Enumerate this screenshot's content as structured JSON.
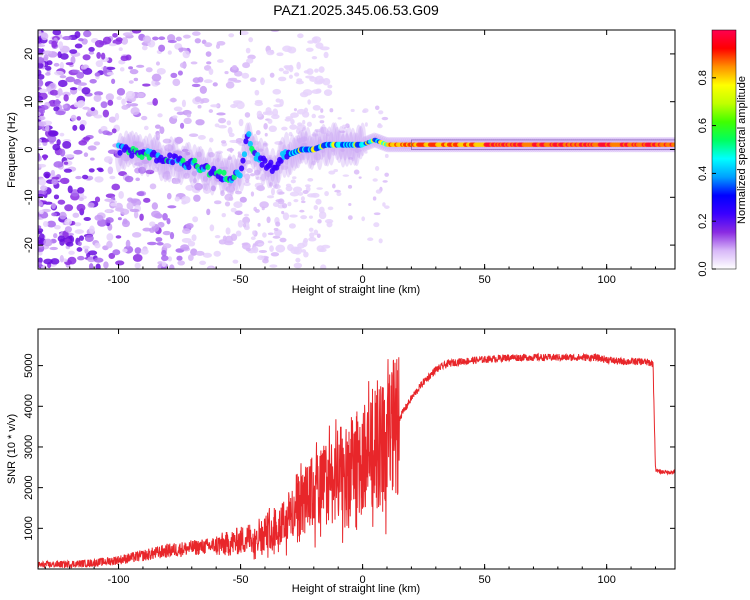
{
  "title": "PAZ1.2025.345.06.53.G09",
  "chart_data": [
    {
      "type": "heatmap",
      "title": "PAZ1.2025.345.06.53.G09",
      "xlabel": "Height of straight line (km)",
      "ylabel": "Frequency (Hz)",
      "xlim": [
        -133,
        128
      ],
      "ylim": [
        -25,
        25
      ],
      "xticks": [
        -100,
        -50,
        0,
        50,
        100
      ],
      "yticks": [
        -20,
        -10,
        0,
        10,
        20
      ],
      "colorbar": {
        "label": "Normalized spectral amplitude",
        "range": [
          0.0,
          1.0
        ],
        "ticks": [
          "0.0",
          "0.2",
          "0.4",
          "0.6",
          "0.8"
        ],
        "colors": [
          "#ffffff",
          "#d8b8f8",
          "#8a2be2",
          "#3a00ff",
          "#0000ff",
          "#00a0ff",
          "#00ffff",
          "#00ff60",
          "#40ff00",
          "#c0ff00",
          "#ffff00",
          "#ff9000",
          "#ff0000",
          "#ff0050"
        ]
      },
      "ridge": {
        "x": [
          -100,
          -90,
          -80,
          -70,
          -60,
          -55,
          -50,
          -47,
          -44,
          -40,
          -35,
          -32,
          -30,
          -25,
          -20,
          -15,
          -10,
          -5,
          0,
          5,
          10,
          20,
          40,
          60,
          80,
          100,
          128
        ],
        "y": [
          0,
          -1,
          -2,
          -3,
          -5,
          -6,
          -5,
          3,
          -1,
          -3,
          -4,
          -1,
          -1,
          0,
          0,
          1,
          1,
          1,
          1,
          2,
          1,
          1,
          1,
          1,
          1,
          1,
          1
        ]
      }
    },
    {
      "type": "line",
      "xlabel": "Height of straight line (km)",
      "ylabel": "SNR (10 * v/v)",
      "xlim": [
        -133,
        128
      ],
      "ylim": [
        0,
        5900
      ],
      "xticks": [
        -100,
        -50,
        0,
        50,
        100
      ],
      "yticks": [
        1000,
        2000,
        3000,
        4000,
        5000
      ],
      "color": "#e8262a",
      "series": [
        {
          "name": "SNR",
          "x": [
            -133,
            -120,
            -110,
            -100,
            -90,
            -80,
            -70,
            -60,
            -55,
            -50,
            -45,
            -40,
            -35,
            -30,
            -25,
            -20,
            -15,
            -10,
            -5,
            0,
            5,
            10,
            15,
            20,
            25,
            30,
            35,
            40,
            50,
            60,
            70,
            80,
            90,
            95,
            100,
            105,
            110,
            115,
            119,
            120,
            121,
            125,
            128
          ],
          "y": [
            100,
            120,
            150,
            220,
            330,
            450,
            520,
            580,
            620,
            700,
            800,
            900,
            1100,
            1300,
            1600,
            1900,
            2100,
            2300,
            2500,
            2700,
            2900,
            3200,
            3700,
            4200,
            4600,
            4900,
            5050,
            5100,
            5150,
            5200,
            5200,
            5200,
            5200,
            5200,
            5150,
            5100,
            5100,
            5100,
            5050,
            2450,
            2400,
            2380,
            2380
          ]
        }
      ]
    }
  ]
}
